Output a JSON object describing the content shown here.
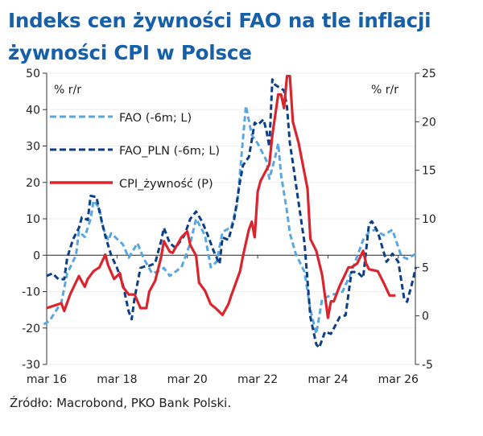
{
  "title": "Indeks cen żywności FAO na tle inflacji żywności CPI w Polsce",
  "source": "Źródło: Macrobond, PKO Bank Polski.",
  "chart_data": {
    "type": "line",
    "title": "Indeks cen żywności FAO na tle inflacji żywności CPI w Polsce",
    "ylabel_left": "% r/r",
    "ylabel_right": "% r/r",
    "ylim_left": [
      -30,
      50
    ],
    "ylim_right": [
      -5,
      25
    ],
    "yticks_left": [
      "50",
      "40",
      "30",
      "20",
      "10",
      "0",
      "-10",
      "-20",
      "-30"
    ],
    "yticks_right": [
      "25",
      "20",
      "15",
      "10",
      "5",
      "0",
      "-5"
    ],
    "xticks": [
      {
        "date": "2016-03",
        "label": "mar 16"
      },
      {
        "date": "2018-03",
        "label": "mar 18"
      },
      {
        "date": "2020-03",
        "label": "mar 20"
      },
      {
        "date": "2022-03",
        "label": "mar 22"
      },
      {
        "date": "2024-03",
        "label": "mar 24"
      },
      {
        "date": "2026-03",
        "label": "mar 26"
      }
    ],
    "grid": true,
    "legend_position": "top-left",
    "series": [
      {
        "name": "FAO (-6m; L)",
        "axis": "left",
        "style": "dashed",
        "color": "#5aa7e0",
        "points": [
          [
            "2016-02",
            -19
          ],
          [
            "2016-04",
            -18
          ],
          [
            "2016-08",
            -13
          ],
          [
            "2016-10",
            -5
          ],
          [
            "2017-01",
            0
          ],
          [
            "2017-02",
            6.6
          ],
          [
            "2017-04",
            5
          ],
          [
            "2017-06",
            10
          ],
          [
            "2017-07",
            15
          ],
          [
            "2017-09",
            13
          ],
          [
            "2017-10",
            8
          ],
          [
            "2017-12",
            4
          ],
          [
            "2018-01",
            6
          ],
          [
            "2018-05",
            3
          ],
          [
            "2018-07",
            -0.7
          ],
          [
            "2018-10",
            3.3
          ],
          [
            "2018-12",
            -0.7
          ],
          [
            "2019-03",
            -5
          ],
          [
            "2019-05",
            -4.4
          ],
          [
            "2019-07",
            -3.5
          ],
          [
            "2019-09",
            -5.7
          ],
          [
            "2020-01",
            -3.3
          ],
          [
            "2020-04",
            3.3
          ],
          [
            "2020-06",
            10
          ],
          [
            "2020-09",
            5.5
          ],
          [
            "2020-11",
            -3.3
          ],
          [
            "2021-01",
            -1.8
          ],
          [
            "2021-03",
            6.4
          ],
          [
            "2021-06",
            7.7
          ],
          [
            "2021-08",
            14
          ],
          [
            "2021-11",
            41
          ],
          [
            "2022-01",
            33
          ],
          [
            "2022-03",
            30.7
          ],
          [
            "2022-06",
            26
          ],
          [
            "2022-07",
            21
          ],
          [
            "2022-09",
            27
          ],
          [
            "2022-10",
            30.7
          ],
          [
            "2022-11",
            22
          ],
          [
            "2023-01",
            12
          ],
          [
            "2023-02",
            6
          ],
          [
            "2023-04",
            0.4
          ],
          [
            "2023-07",
            -4.6
          ],
          [
            "2023-09",
            -15
          ],
          [
            "2023-11",
            -21.6
          ],
          [
            "2024-01",
            -12
          ],
          [
            "2024-04",
            -11
          ],
          [
            "2024-08",
            -10
          ],
          [
            "2024-11",
            -4.6
          ],
          [
            "2025-03",
            4.2
          ],
          [
            "2025-05",
            6.4
          ],
          [
            "2025-07",
            7
          ],
          [
            "2025-10",
            5.5
          ],
          [
            "2026-01",
            7
          ],
          [
            "2026-04",
            -0.2
          ],
          [
            "2026-06",
            -1
          ],
          [
            "2026-09",
            0.4
          ]
        ]
      },
      {
        "name": "FAO_PLN (-6m; L)",
        "axis": "left",
        "style": "dashed",
        "color": "#0d3f86",
        "points": [
          [
            "2016-03",
            -5.7
          ],
          [
            "2016-05",
            -5
          ],
          [
            "2016-07",
            -6.6
          ],
          [
            "2016-09",
            -6.6
          ],
          [
            "2016-10",
            -0.7
          ],
          [
            "2016-12",
            4.4
          ],
          [
            "2017-02",
            7.5
          ],
          [
            "2017-03",
            10.4
          ],
          [
            "2017-05",
            9.7
          ],
          [
            "2017-06",
            16.3
          ],
          [
            "2017-08",
            16
          ],
          [
            "2017-09",
            12
          ],
          [
            "2017-11",
            5.3
          ],
          [
            "2018-01",
            0
          ],
          [
            "2018-03",
            -3.5
          ],
          [
            "2018-05",
            -8
          ],
          [
            "2018-07",
            -15.5
          ],
          [
            "2018-08",
            -17.6
          ],
          [
            "2018-09",
            -11.7
          ],
          [
            "2018-11",
            -3.5
          ],
          [
            "2019-01",
            -2.9
          ],
          [
            "2019-02",
            -2.9
          ],
          [
            "2019-04",
            -2.2
          ],
          [
            "2019-06",
            3.8
          ],
          [
            "2019-07",
            7.5
          ],
          [
            "2019-09",
            3.3
          ],
          [
            "2019-11",
            2
          ],
          [
            "2020-02",
            5.5
          ],
          [
            "2020-04",
            10
          ],
          [
            "2020-06",
            12
          ],
          [
            "2020-08",
            9.3
          ],
          [
            "2020-10",
            5.5
          ],
          [
            "2020-12",
            1.1
          ],
          [
            "2021-02",
            -2.4
          ],
          [
            "2021-03",
            4.9
          ],
          [
            "2021-05",
            4.2
          ],
          [
            "2021-07",
            10
          ],
          [
            "2021-09",
            20.3
          ],
          [
            "2021-10",
            24.7
          ],
          [
            "2021-12",
            27
          ],
          [
            "2022-02",
            36.4
          ],
          [
            "2022-03",
            35.8
          ],
          [
            "2022-05",
            37.3
          ],
          [
            "2022-06",
            34.2
          ],
          [
            "2022-07",
            29.8
          ],
          [
            "2022-08",
            48.3
          ],
          [
            "2022-09",
            46.8
          ],
          [
            "2022-12",
            45.3
          ],
          [
            "2023-01",
            40.8
          ],
          [
            "2023-02",
            30.7
          ],
          [
            "2023-03",
            25.4
          ],
          [
            "2023-05",
            14.3
          ],
          [
            "2023-07",
            3.3
          ],
          [
            "2023-09",
            -17
          ],
          [
            "2023-11",
            -24.5
          ],
          [
            "2023-12",
            -25.4
          ],
          [
            "2024-02",
            -21
          ],
          [
            "2024-04",
            -21.6
          ],
          [
            "2024-07",
            -17
          ],
          [
            "2024-09",
            -16.5
          ],
          [
            "2024-11",
            -4.6
          ],
          [
            "2025-01",
            -4.6
          ],
          [
            "2025-03",
            -6.2
          ],
          [
            "2025-05",
            8.6
          ],
          [
            "2025-06",
            9.3
          ],
          [
            "2025-08",
            6.4
          ],
          [
            "2025-11",
            -1.8
          ],
          [
            "2026-01",
            0.4
          ],
          [
            "2026-03",
            -1.8
          ],
          [
            "2026-05",
            -12
          ],
          [
            "2026-06",
            -12.8
          ],
          [
            "2026-08",
            -6.8
          ],
          [
            "2026-09",
            -3.3
          ]
        ]
      },
      {
        "name": "CPI_żywność (P)",
        "axis": "right",
        "style": "solid",
        "color": "#d9262e",
        "points": [
          [
            "2016-03",
            0.8
          ],
          [
            "2016-06",
            1.1
          ],
          [
            "2016-08",
            1.3
          ],
          [
            "2016-09",
            0.5
          ],
          [
            "2016-11",
            2.2
          ],
          [
            "2017-02",
            4.1
          ],
          [
            "2017-04",
            3
          ],
          [
            "2017-05",
            3.8
          ],
          [
            "2017-07",
            4.6
          ],
          [
            "2017-09",
            5
          ],
          [
            "2017-11",
            6.3
          ],
          [
            "2017-12",
            5.2
          ],
          [
            "2018-02",
            3.8
          ],
          [
            "2018-04",
            4.4
          ],
          [
            "2018-05",
            3
          ],
          [
            "2018-07",
            2.2
          ],
          [
            "2018-09",
            2.2
          ],
          [
            "2018-11",
            0.8
          ],
          [
            "2019-01",
            0.8
          ],
          [
            "2019-02",
            2.5
          ],
          [
            "2019-04",
            3.6
          ],
          [
            "2019-06",
            6
          ],
          [
            "2019-07",
            7.7
          ],
          [
            "2019-09",
            6.6
          ],
          [
            "2019-10",
            6.5
          ],
          [
            "2020-01",
            8.1
          ],
          [
            "2020-03",
            8.7
          ],
          [
            "2020-04",
            7.3
          ],
          [
            "2020-06",
            6.2
          ],
          [
            "2020-07",
            3.4
          ],
          [
            "2020-09",
            2.6
          ],
          [
            "2020-11",
            1.2
          ],
          [
            "2021-01",
            0.7
          ],
          [
            "2021-03",
            0.1
          ],
          [
            "2021-05",
            1.2
          ],
          [
            "2021-06",
            2.1
          ],
          [
            "2021-09",
            4.6
          ],
          [
            "2021-10",
            6.2
          ],
          [
            "2021-12",
            8.9
          ],
          [
            "2022-01",
            9.7
          ],
          [
            "2022-02",
            8.1
          ],
          [
            "2022-03",
            12.8
          ],
          [
            "2022-04",
            13.9
          ],
          [
            "2022-07",
            15.6
          ],
          [
            "2022-08",
            18.6
          ],
          [
            "2022-10",
            22.8
          ],
          [
            "2022-11",
            22.8
          ],
          [
            "2022-12",
            21.4
          ],
          [
            "2023-01",
            24.7
          ],
          [
            "2023-02",
            24.7
          ],
          [
            "2023-03",
            20
          ],
          [
            "2023-05",
            17.8
          ],
          [
            "2023-08",
            13.1
          ],
          [
            "2023-09",
            7.9
          ],
          [
            "2023-11",
            6.7
          ],
          [
            "2024-01",
            4.2
          ],
          [
            "2024-03",
            -0.2
          ],
          [
            "2024-04",
            1.5
          ],
          [
            "2024-05",
            1.5
          ],
          [
            "2024-07",
            3.1
          ],
          [
            "2024-10",
            5
          ],
          [
            "2024-11",
            5
          ],
          [
            "2025-01",
            5.4
          ],
          [
            "2025-03",
            6.7
          ],
          [
            "2025-04",
            5.4
          ],
          [
            "2025-05",
            4.8
          ],
          [
            "2025-08",
            4.6
          ],
          [
            "2025-10",
            3.4
          ],
          [
            "2025-12",
            2.1
          ],
          [
            "2026-02",
            2.1
          ]
        ]
      }
    ]
  }
}
